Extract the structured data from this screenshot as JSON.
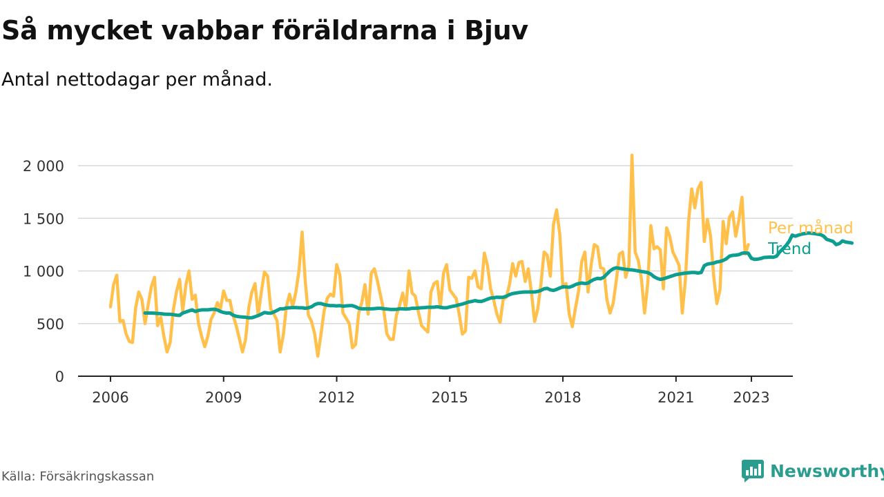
{
  "header": {
    "title": "Så mycket vabbar föräldrarna i Bjuv",
    "subtitle": "Antal nettodagar per månad."
  },
  "footer": {
    "source": "Källa: Försäkringskassan",
    "brand": "Newsworthy",
    "brand_icon": "bar-chart-speech-bubble-icon"
  },
  "colors": {
    "monthly": "#FFC04C",
    "trend": "#0E9E8F",
    "grid": "#d9d9d9",
    "axis": "#222222",
    "brand": "#2A9D8F"
  },
  "chart_data": {
    "type": "line",
    "title": "Så mycket vabbar föräldrarna i Bjuv",
    "subtitle": "Antal nettodagar per månad.",
    "xlabel": "",
    "ylabel": "",
    "xlim": [
      2006.0,
      2023.583
    ],
    "ylim": [
      0,
      2000
    ],
    "y_ticks": [
      {
        "value": 0,
        "label": "0"
      },
      {
        "value": 500,
        "label": "500"
      },
      {
        "value": 1000,
        "label": "1 000"
      },
      {
        "value": 1500,
        "label": "1 500"
      },
      {
        "value": 2000,
        "label": "2 000"
      }
    ],
    "x_ticks": [
      {
        "value": 2006,
        "label": "2006"
      },
      {
        "value": 2009,
        "label": "2009"
      },
      {
        "value": 2012,
        "label": "2012"
      },
      {
        "value": 2015,
        "label": "2015"
      },
      {
        "value": 2018,
        "label": "2018"
      },
      {
        "value": 2021,
        "label": "2021"
      },
      {
        "value": 2023,
        "label": "2023"
      }
    ],
    "grid": true,
    "legend": "direct labels at right end of lines",
    "series": [
      {
        "name": "Per månad",
        "color": "#FFC04C",
        "start": "2006-01",
        "values": [
          660,
          870,
          960,
          520,
          530,
          400,
          330,
          320,
          650,
          800,
          730,
          500,
          680,
          850,
          940,
          480,
          560,
          380,
          230,
          320,
          630,
          800,
          920,
          620,
          870,
          1000,
          730,
          770,
          500,
          380,
          280,
          380,
          540,
          600,
          700,
          640,
          810,
          720,
          720,
          580,
          480,
          360,
          230,
          350,
          650,
          800,
          880,
          580,
          800,
          990,
          950,
          640,
          590,
          530,
          230,
          390,
          660,
          780,
          660,
          800,
          1000,
          1370,
          900,
          580,
          520,
          400,
          190,
          400,
          620,
          740,
          780,
          760,
          1060,
          960,
          600,
          550,
          500,
          270,
          300,
          600,
          700,
          870,
          590,
          980,
          1020,
          900,
          760,
          620,
          400,
          350,
          350,
          580,
          670,
          790,
          640,
          1000,
          790,
          760,
          610,
          480,
          450,
          420,
          800,
          880,
          900,
          650,
          980,
          1060,
          820,
          780,
          740,
          590,
          400,
          430,
          940,
          930,
          1000,
          850,
          830,
          1170,
          1050,
          830,
          720,
          590,
          510,
          730,
          750,
          870,
          1070,
          950,
          1080,
          1090,
          900,
          1020,
          790,
          520,
          640,
          870,
          1180,
          1150,
          950,
          1440,
          1580,
          1350,
          840,
          880,
          590,
          470,
          650,
          810,
          1090,
          1180,
          800,
          1060,
          1250,
          1230,
          1030,
          1020,
          730,
          600,
          690,
          910,
          1160,
          1180,
          940,
          1050,
          2100,
          1180,
          1100,
          920,
          600,
          880,
          1430,
          1210,
          1230,
          1200,
          830,
          1410,
          1330,
          1180,
          1120,
          1050,
          600,
          920,
          1470,
          1780,
          1600,
          1780,
          1840,
          1280,
          1490,
          1330,
          950,
          690,
          820,
          1470,
          1260,
          1510,
          1560,
          1330,
          1480,
          1700,
          1160,
          1250
        ]
      },
      {
        "name": "Trend",
        "color": "#0E9E8F",
        "start": "2006-12",
        "values": [
          600,
          600,
          600,
          598,
          596,
          594,
          590,
          588,
          588,
          585,
          580,
          578,
          600,
          610,
          620,
          630,
          615,
          625,
          630,
          630,
          630,
          635,
          636,
          630,
          615,
          605,
          600,
          600,
          580,
          570,
          565,
          562,
          560,
          555,
          556,
          565,
          575,
          590,
          605,
          600,
          598,
          610,
          625,
          640,
          640,
          648,
          650,
          652,
          652,
          650,
          650,
          645,
          650,
          660,
          680,
          690,
          690,
          680,
          675,
          670,
          670,
          668,
          670,
          665,
          668,
          670,
          670,
          660,
          645,
          640,
          640,
          640,
          640,
          642,
          645,
          645,
          640,
          638,
          635,
          635,
          635,
          640,
          640,
          638,
          640,
          645,
          645,
          648,
          650,
          652,
          655,
          655,
          656,
          660,
          655,
          650,
          650,
          658,
          664,
          670,
          678,
          685,
          695,
          705,
          710,
          718,
          712,
          710,
          720,
          732,
          742,
          745,
          750,
          748,
          750,
          760,
          775,
          785,
          790,
          795,
          798,
          800,
          800,
          800,
          800,
          805,
          815,
          830,
          835,
          820,
          815,
          825,
          838,
          850,
          848,
          845,
          855,
          870,
          880,
          885,
          880,
          885,
          905,
          920,
          930,
          925,
          940,
          970,
          1000,
          1020,
          1030,
          1025,
          1020,
          1015,
          1012,
          1010,
          1005,
          1000,
          995,
          990,
          985,
          970,
          945,
          930,
          920,
          925,
          935,
          945,
          955,
          965,
          970,
          975,
          980,
          982,
          985,
          985,
          980,
          985,
          1050,
          1065,
          1070,
          1075,
          1085,
          1090,
          1100,
          1115,
          1140,
          1148,
          1150,
          1155,
          1168,
          1172,
          1168,
          1120,
          1110,
          1112,
          1118,
          1128,
          1130,
          1132,
          1130,
          1140,
          1180,
          1210,
          1240,
          1280,
          1340,
          1330,
          1340,
          1350,
          1355,
          1360,
          1358,
          1355,
          1350,
          1345,
          1330,
          1300,
          1290,
          1280,
          1250,
          1260,
          1285,
          1275,
          1270,
          1265
        ]
      }
    ],
    "direct_labels": [
      {
        "series": "Per månad",
        "text": "Per månad"
      },
      {
        "series": "Trend",
        "text": "Trend"
      }
    ]
  }
}
